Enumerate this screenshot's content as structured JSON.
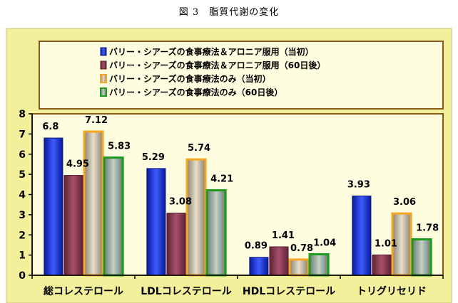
{
  "figure_title": "図 3　脂質代謝の変化",
  "chart_data": {
    "type": "bar",
    "title": "",
    "xlabel": "",
    "ylabel": "",
    "ylim": [
      0,
      8
    ],
    "yticks": [
      0,
      1,
      2,
      3,
      4,
      5,
      6,
      7,
      8
    ],
    "grid": false,
    "legend_position": "top",
    "categories": [
      "総コレステロール",
      "LDLコレステロール",
      "HDLコレステロール",
      "トリグリセリド"
    ],
    "series": [
      {
        "name": "バリー・シアーズの食事療法＆アロニア服用（当初）",
        "values": [
          6.8,
          5.29,
          0.89,
          3.93
        ],
        "labels": [
          "6.8",
          "5.29",
          "0.89",
          "3.93"
        ],
        "color": "#1a2fd6",
        "border": "#0a1a80"
      },
      {
        "name": "バリー・シアーズの食事療法＆アロニア服用（60日後）",
        "values": [
          4.95,
          3.08,
          1.41,
          1.01
        ],
        "labels": [
          "4.95",
          "3.08",
          "1.41",
          "1.01"
        ],
        "color": "#8e3a52",
        "border": "#5a1f31"
      },
      {
        "name": "バリー・シアーズの食事療法のみ（当初）",
        "values": [
          7.12,
          5.74,
          0.78,
          3.06
        ],
        "labels": [
          "7.12",
          "5.74",
          "0.78",
          "3.06"
        ],
        "color": "#c8c0a8",
        "border": "#f5a623"
      },
      {
        "name": "バリー・シアーズの食事療法のみ（60日後）",
        "values": [
          5.83,
          4.21,
          1.04,
          1.78
        ],
        "labels": [
          "5.83",
          "4.21",
          "1.04",
          "1.78"
        ],
        "color": "#9fb0a3",
        "border": "#1e9a1e"
      }
    ],
    "colors": {
      "plot_background": "#fffde0",
      "outer_background": "#f2f09a",
      "frame": "#8a5a1c"
    }
  }
}
